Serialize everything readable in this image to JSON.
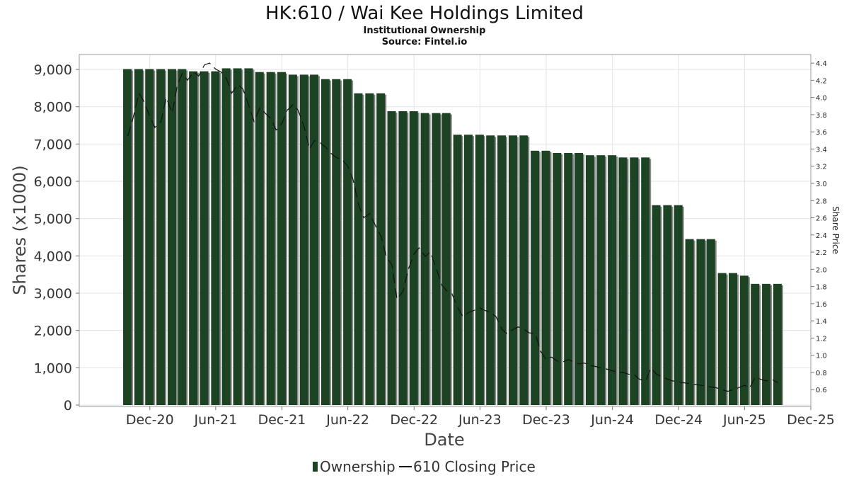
{
  "title": "HK:610 / Wai Kee Holdings Limited",
  "subtitle": "Institutional Ownership",
  "source": "Source: Fintel.io",
  "colors": {
    "bar": "#1c4323",
    "bar_shadow": "#8a8a8a",
    "line": "#111111",
    "grid": "#e2e2e2"
  },
  "chart_data": {
    "type": "bar",
    "xlabel": "Date",
    "ylabel": "Shares (x1000)",
    "y2label": "Share Price",
    "ylim": [
      0,
      9400
    ],
    "y2lim": [
      0.42,
      4.5
    ],
    "yticks": [
      0,
      1000,
      2000,
      3000,
      4000,
      5000,
      6000,
      7000,
      8000,
      9000
    ],
    "ytick_labels": [
      "0",
      "1,000",
      "2,000",
      "3,000",
      "4,000",
      "5,000",
      "6,000",
      "7,000",
      "8,000",
      "9,000"
    ],
    "y2ticks": [
      0.6,
      0.8,
      1.0,
      1.2,
      1.4,
      1.6,
      1.8,
      2.0,
      2.2,
      2.4,
      2.6,
      2.8,
      3.0,
      3.2,
      3.4,
      3.6,
      3.8,
      4.0,
      4.2,
      4.4
    ],
    "y2tick_labels": [
      "0.6",
      "0.8",
      "1.0",
      "1.2",
      "1.4",
      "1.6",
      "1.8",
      "2.0",
      "2.2",
      "2.4",
      "2.6",
      "2.8",
      "3.0",
      "3.2",
      "3.4",
      "3.6",
      "3.8",
      "4.0",
      "4.2",
      "4.4"
    ],
    "xticks": [
      "2020-12-01",
      "2021-06-01",
      "2021-12-01",
      "2022-06-01",
      "2022-12-01",
      "2023-06-01",
      "2023-12-01",
      "2024-06-01",
      "2024-12-01",
      "2025-06-01",
      "2025-12-01"
    ],
    "xtick_labels": [
      "Dec-20",
      "Jun-21",
      "Dec-21",
      "Jun-22",
      "Dec-22",
      "Jun-23",
      "Dec-23",
      "Jun-24",
      "Dec-24",
      "Jun-25",
      "Dec-25"
    ],
    "xlim": [
      "2020-05-20",
      "2025-12-01"
    ],
    "grid": true,
    "legend_position": "bottom-center",
    "series": [
      {
        "name": "Ownership",
        "type": "bar",
        "dates": [
          "2020-09-30",
          "2020-10-31",
          "2020-11-30",
          "2020-12-31",
          "2021-01-31",
          "2021-02-28",
          "2021-03-31",
          "2021-04-30",
          "2021-05-31",
          "2021-06-30",
          "2021-07-31",
          "2021-08-31",
          "2021-09-30",
          "2021-10-31",
          "2021-11-30",
          "2021-12-31",
          "2022-01-31",
          "2022-02-28",
          "2022-03-31",
          "2022-04-30",
          "2022-05-31",
          "2022-06-30",
          "2022-07-31",
          "2022-08-31",
          "2022-09-30",
          "2022-10-31",
          "2022-11-30",
          "2022-12-31",
          "2023-01-31",
          "2023-02-28",
          "2023-03-31",
          "2023-04-30",
          "2023-05-31",
          "2023-06-30",
          "2023-07-31",
          "2023-08-31",
          "2023-09-30",
          "2023-10-31",
          "2023-11-30",
          "2023-12-31",
          "2024-01-31",
          "2024-02-29",
          "2024-03-31",
          "2024-04-30",
          "2024-05-31",
          "2024-06-30",
          "2024-07-31",
          "2024-08-31",
          "2024-09-30",
          "2024-10-31",
          "2024-11-30",
          "2024-12-31",
          "2025-01-31",
          "2025-02-28",
          "2025-03-31",
          "2025-04-30",
          "2025-05-31",
          "2025-06-30",
          "2025-07-31",
          "2025-08-31"
        ],
        "values": [
          9010,
          9010,
          9010,
          9010,
          9010,
          9010,
          8950,
          8950,
          8950,
          9030,
          9030,
          9030,
          8930,
          8930,
          8930,
          8860,
          8860,
          8860,
          8740,
          8740,
          8740,
          8360,
          8360,
          8360,
          7880,
          7880,
          7880,
          7830,
          7830,
          7830,
          7250,
          7250,
          7250,
          7230,
          7230,
          7230,
          7230,
          6820,
          6820,
          6760,
          6760,
          6760,
          6700,
          6700,
          6700,
          6640,
          6640,
          6640,
          5360,
          5360,
          5360,
          4450,
          4450,
          4450,
          3540,
          3540,
          3470,
          3250,
          3250,
          3250
        ]
      },
      {
        "name": "610 Closing Price",
        "type": "line",
        "points": [
          [
            "2020-10-01",
            3.55
          ],
          [
            "2020-10-15",
            3.75
          ],
          [
            "2020-11-01",
            4.05
          ],
          [
            "2020-11-15",
            3.95
          ],
          [
            "2020-12-01",
            3.78
          ],
          [
            "2020-12-15",
            3.65
          ],
          [
            "2021-01-01",
            3.72
          ],
          [
            "2021-01-15",
            4.0
          ],
          [
            "2021-02-01",
            3.82
          ],
          [
            "2021-02-15",
            4.15
          ],
          [
            "2021-03-01",
            4.28
          ],
          [
            "2021-03-15",
            4.2
          ],
          [
            "2021-04-01",
            4.3
          ],
          [
            "2021-04-15",
            4.25
          ],
          [
            "2021-05-01",
            4.38
          ],
          [
            "2021-05-15",
            4.4
          ],
          [
            "2021-06-01",
            4.33
          ],
          [
            "2021-06-15",
            4.3
          ],
          [
            "2021-07-01",
            4.22
          ],
          [
            "2021-07-15",
            4.05
          ],
          [
            "2021-08-01",
            4.15
          ],
          [
            "2021-08-15",
            4.1
          ],
          [
            "2021-09-01",
            3.9
          ],
          [
            "2021-09-15",
            3.72
          ],
          [
            "2021-10-01",
            3.88
          ],
          [
            "2021-10-15",
            3.82
          ],
          [
            "2021-11-01",
            3.75
          ],
          [
            "2021-11-15",
            3.62
          ],
          [
            "2021-12-01",
            3.7
          ],
          [
            "2021-12-15",
            3.85
          ],
          [
            "2022-01-01",
            3.92
          ],
          [
            "2022-01-15",
            3.85
          ],
          [
            "2022-02-01",
            3.65
          ],
          [
            "2022-02-15",
            3.4
          ],
          [
            "2022-03-01",
            3.5
          ],
          [
            "2022-03-15",
            3.48
          ],
          [
            "2022-04-01",
            3.42
          ],
          [
            "2022-04-15",
            3.35
          ],
          [
            "2022-05-01",
            3.3
          ],
          [
            "2022-05-15",
            3.28
          ],
          [
            "2022-06-01",
            3.2
          ],
          [
            "2022-06-15",
            3.05
          ],
          [
            "2022-07-01",
            2.75
          ],
          [
            "2022-07-15",
            2.6
          ],
          [
            "2022-08-01",
            2.65
          ],
          [
            "2022-08-15",
            2.52
          ],
          [
            "2022-09-01",
            2.38
          ],
          [
            "2022-09-15",
            2.15
          ],
          [
            "2022-10-01",
            2.05
          ],
          [
            "2022-10-15",
            1.65
          ],
          [
            "2022-11-01",
            1.75
          ],
          [
            "2022-11-15",
            2.0
          ],
          [
            "2022-12-01",
            2.18
          ],
          [
            "2022-12-15",
            2.25
          ],
          [
            "2023-01-01",
            2.15
          ],
          [
            "2023-01-15",
            2.2
          ],
          [
            "2023-02-01",
            2.0
          ],
          [
            "2023-02-15",
            1.82
          ],
          [
            "2023-03-01",
            1.75
          ],
          [
            "2023-03-15",
            1.72
          ],
          [
            "2023-04-01",
            1.55
          ],
          [
            "2023-04-15",
            1.45
          ],
          [
            "2023-05-01",
            1.5
          ],
          [
            "2023-05-15",
            1.52
          ],
          [
            "2023-06-01",
            1.55
          ],
          [
            "2023-06-15",
            1.52
          ],
          [
            "2023-07-01",
            1.5
          ],
          [
            "2023-07-15",
            1.45
          ],
          [
            "2023-08-01",
            1.3
          ],
          [
            "2023-08-15",
            1.25
          ],
          [
            "2023-09-01",
            1.3
          ],
          [
            "2023-09-15",
            1.33
          ],
          [
            "2023-10-01",
            1.3
          ],
          [
            "2023-10-15",
            1.26
          ],
          [
            "2023-11-01",
            1.25
          ],
          [
            "2023-11-15",
            1.05
          ],
          [
            "2023-12-01",
            0.95
          ],
          [
            "2023-12-15",
            0.98
          ],
          [
            "2024-01-01",
            0.93
          ],
          [
            "2024-01-15",
            0.92
          ],
          [
            "2024-02-01",
            0.95
          ],
          [
            "2024-02-15",
            0.92
          ],
          [
            "2024-03-01",
            0.9
          ],
          [
            "2024-03-15",
            0.91
          ],
          [
            "2024-04-01",
            0.88
          ],
          [
            "2024-04-15",
            0.87
          ],
          [
            "2024-05-01",
            0.85
          ],
          [
            "2024-05-15",
            0.84
          ],
          [
            "2024-06-01",
            0.82
          ],
          [
            "2024-06-15",
            0.8
          ],
          [
            "2024-07-01",
            0.8
          ],
          [
            "2024-07-15",
            0.78
          ],
          [
            "2024-08-01",
            0.77
          ],
          [
            "2024-08-15",
            0.72
          ],
          [
            "2024-09-01",
            0.7
          ],
          [
            "2024-09-15",
            0.85
          ],
          [
            "2024-10-01",
            0.78
          ],
          [
            "2024-10-15",
            0.75
          ],
          [
            "2024-11-01",
            0.72
          ],
          [
            "2024-11-15",
            0.7
          ],
          [
            "2024-12-01",
            0.69
          ],
          [
            "2024-12-15",
            0.68
          ],
          [
            "2025-01-01",
            0.67
          ],
          [
            "2025-01-15",
            0.66
          ],
          [
            "2025-02-01",
            0.65
          ],
          [
            "2025-02-15",
            0.64
          ],
          [
            "2025-03-01",
            0.63
          ],
          [
            "2025-03-15",
            0.62
          ],
          [
            "2025-04-01",
            0.6
          ],
          [
            "2025-04-15",
            0.58
          ],
          [
            "2025-05-01",
            0.6
          ],
          [
            "2025-05-15",
            0.62
          ],
          [
            "2025-06-01",
            0.65
          ],
          [
            "2025-06-15",
            0.62
          ],
          [
            "2025-07-01",
            0.75
          ],
          [
            "2025-07-15",
            0.72
          ],
          [
            "2025-08-01",
            0.7
          ],
          [
            "2025-08-15",
            0.72
          ],
          [
            "2025-09-01",
            0.68
          ]
        ]
      }
    ]
  }
}
